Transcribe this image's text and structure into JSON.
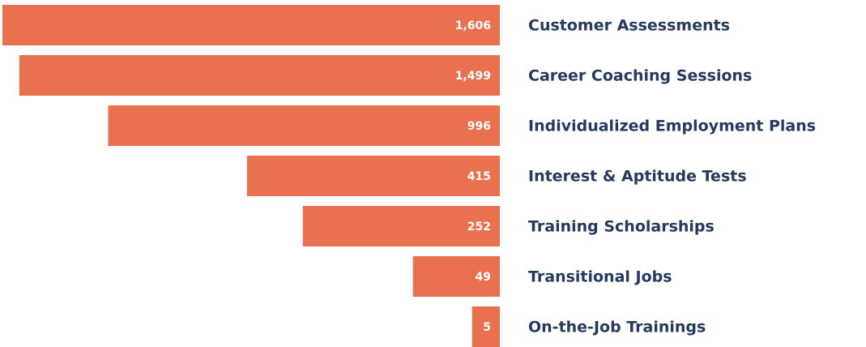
{
  "chart_data": {
    "type": "bar",
    "orientation": "horizontal",
    "xscale": "sqrt",
    "color": "#ea7150",
    "categories": [
      "Customer Assessments",
      "Career Coaching Sessions",
      "Individualized Employment Plans",
      "Interest & Aptitude Tests",
      "Training Scholarships",
      "Transitional Jobs",
      "On-the-Job Trainings"
    ],
    "values": [
      1606,
      1499,
      996,
      415,
      252,
      49,
      5
    ],
    "value_labels": [
      "1,606",
      "1,499",
      "996",
      "415",
      "252",
      "49",
      "5"
    ]
  }
}
